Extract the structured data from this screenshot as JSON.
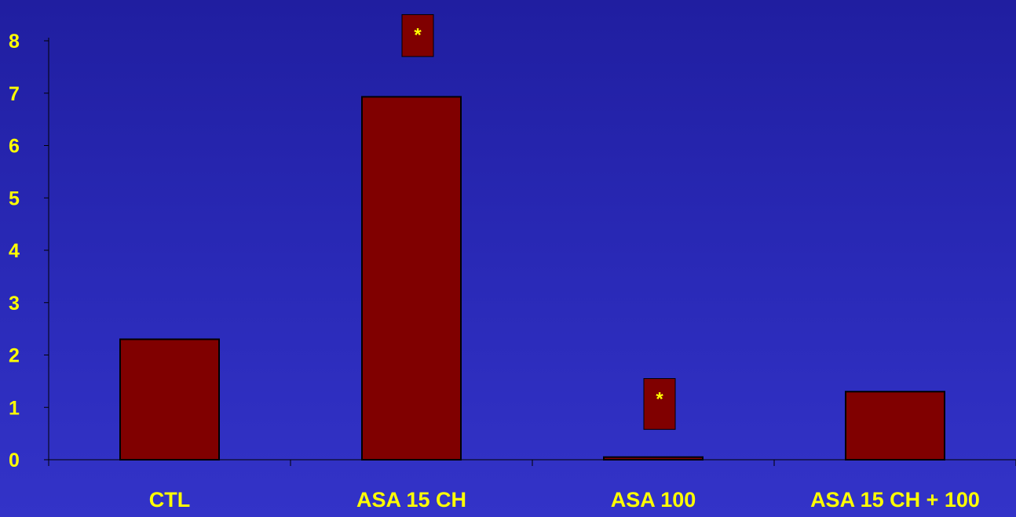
{
  "chart_data": {
    "type": "bar",
    "title": "",
    "xlabel": "",
    "ylabel": "",
    "categories": [
      "CTL",
      "ASA 15 CH",
      "ASA 100",
      "ASA 15 CH + 100"
    ],
    "values": [
      2.3,
      6.93,
      0.05,
      1.3
    ],
    "ylim": [
      0,
      8
    ],
    "yticks": [
      "0",
      "1",
      "2",
      "3",
      "4",
      "5",
      "6",
      "7",
      "8"
    ],
    "grid": false,
    "legend": "none",
    "annotations": [
      {
        "category": "ASA 15 CH",
        "text": "*",
        "y_top": 8.5,
        "y_bottom": 7.7
      },
      {
        "category": "ASA 100",
        "text": "*",
        "y_top": 1.55,
        "y_bottom": 0.58
      }
    ],
    "colors": {
      "bar": "#800000",
      "text": "#ffff00",
      "axis": "#000000",
      "background": "#2a2ab8"
    }
  }
}
